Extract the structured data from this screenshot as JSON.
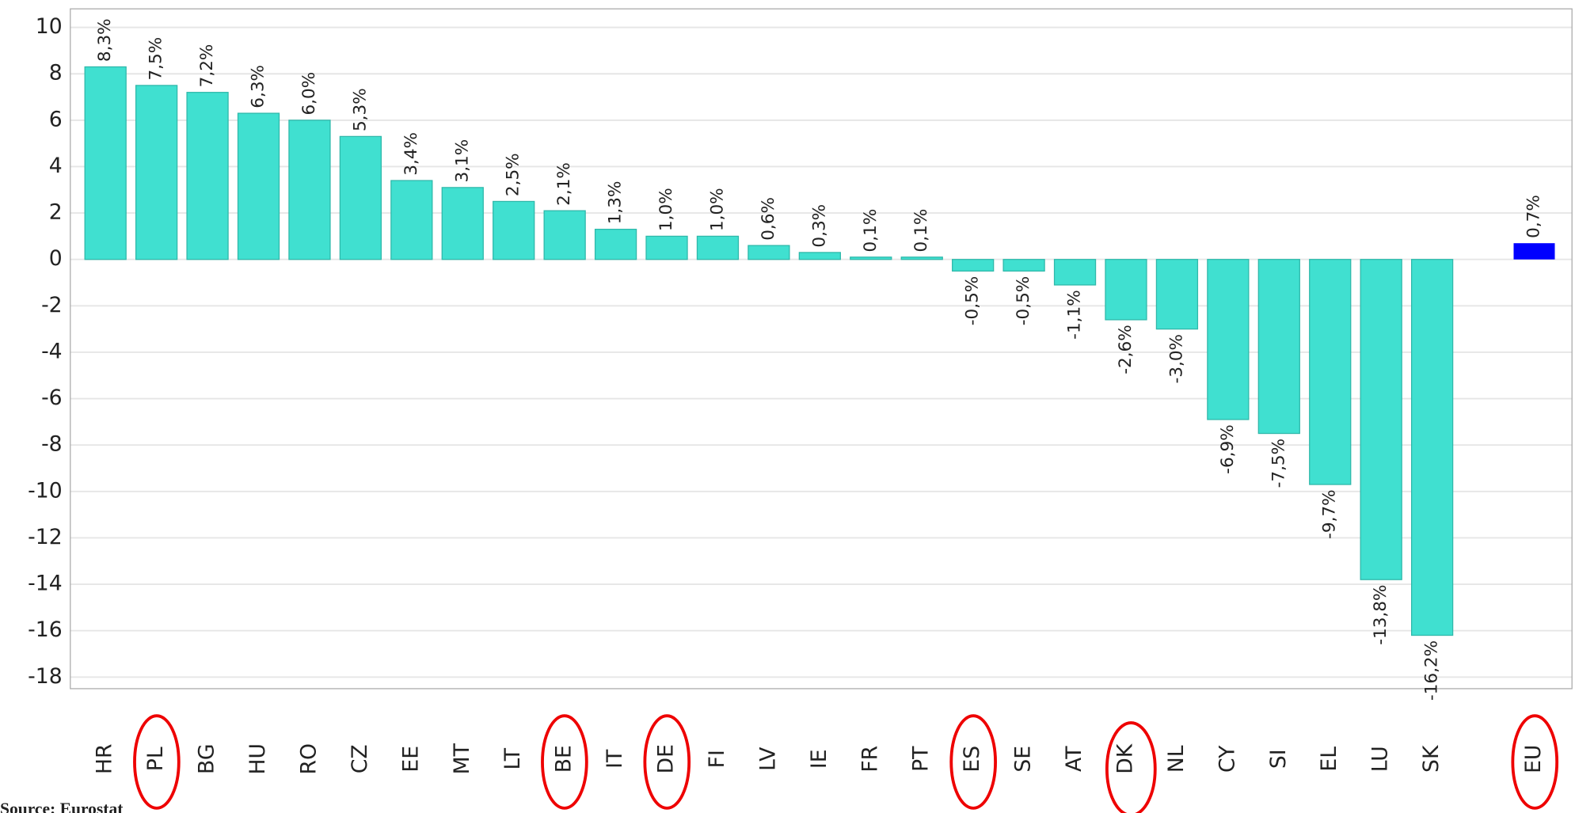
{
  "chart_data": {
    "type": "bar",
    "categories": [
      "HR",
      "PL",
      "BG",
      "HU",
      "RO",
      "CZ",
      "EE",
      "MT",
      "LT",
      "BE",
      "IT",
      "DE",
      "FI",
      "LV",
      "IE",
      "FR",
      "PT",
      "ES",
      "SE",
      "AT",
      "DK",
      "NL",
      "CY",
      "SI",
      "EL",
      "LU",
      "SK",
      null,
      "EU"
    ],
    "values": [
      8.3,
      7.5,
      7.2,
      6.3,
      6.0,
      5.3,
      3.4,
      3.1,
      2.5,
      2.1,
      1.3,
      1.0,
      1.0,
      0.6,
      0.3,
      0.1,
      0.1,
      -0.5,
      -0.5,
      -1.1,
      -2.6,
      -3.0,
      -6.9,
      -7.5,
      -9.7,
      -13.8,
      -16.2,
      null,
      0.7
    ],
    "value_labels": [
      "8,3%",
      "7,5%",
      "7,2%",
      "6,3%",
      "6,0%",
      "5,3%",
      "3,4%",
      "3,1%",
      "2,5%",
      "2,1%",
      "1,3%",
      "1,0%",
      "1,0%",
      "0,6%",
      "0,3%",
      "0,1%",
      "0,1%",
      "-0,5%",
      "-0,5%",
      "-1,1%",
      "-2,6%",
      "-3,0%",
      "-6,9%",
      "-7,5%",
      "-9,7%",
      "-13,8%",
      "-16,2%",
      null,
      "0,7%"
    ],
    "colors": [
      "#40e0d0",
      "#40e0d0",
      "#40e0d0",
      "#40e0d0",
      "#40e0d0",
      "#40e0d0",
      "#40e0d0",
      "#40e0d0",
      "#40e0d0",
      "#40e0d0",
      "#40e0d0",
      "#40e0d0",
      "#40e0d0",
      "#40e0d0",
      "#40e0d0",
      "#40e0d0",
      "#40e0d0",
      "#40e0d0",
      "#40e0d0",
      "#40e0d0",
      "#40e0d0",
      "#40e0d0",
      "#40e0d0",
      "#40e0d0",
      "#40e0d0",
      "#40e0d0",
      "#40e0d0",
      null,
      "#0000ff"
    ],
    "ylim": [
      -18.5,
      10.8
    ],
    "yticks": [
      -18,
      -16,
      -14,
      -12,
      -10,
      -8,
      -6,
      -4,
      -2,
      0,
      2,
      4,
      6,
      8,
      10
    ],
    "grid": true,
    "source": "Source: Eurostat"
  }
}
